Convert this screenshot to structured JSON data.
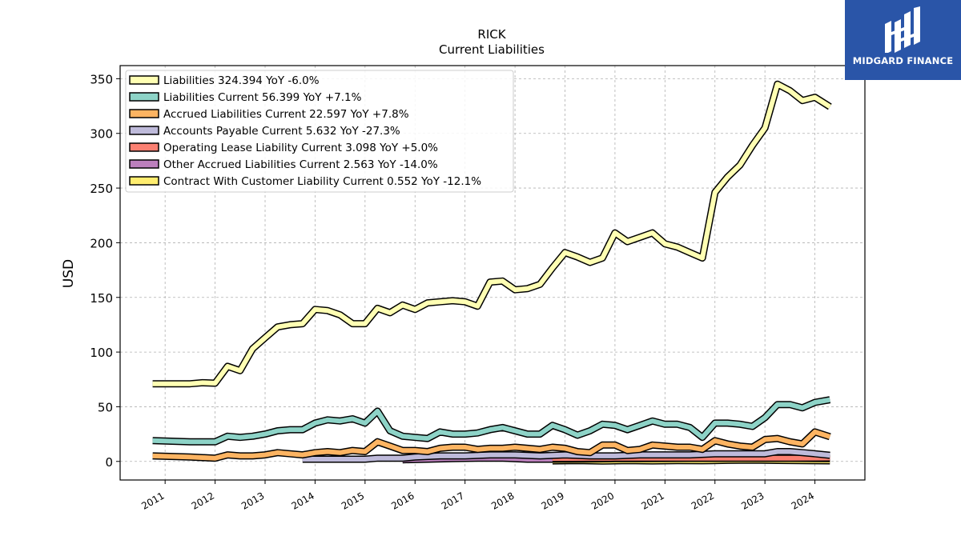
{
  "logo": {
    "name": "MIDGARD FINANCE",
    "icon": "midgard-finance-logo-icon",
    "bg_color": "#2a55a8"
  },
  "chart_data": {
    "type": "line",
    "title": "RICK",
    "subtitle": "Current  Liabilities",
    "ylabel": "USD",
    "xlabel": "",
    "ylim": [
      -17,
      362
    ],
    "xlim": [
      2010.1,
      2025.0
    ],
    "yticks": [
      0,
      50,
      100,
      150,
      200,
      250,
      300,
      350
    ],
    "xticks": [
      "2011",
      "2012",
      "2013",
      "2014",
      "2015",
      "2016",
      "2017",
      "2018",
      "2019",
      "2020",
      "2021",
      "2022",
      "2023",
      "2024"
    ],
    "grid": true,
    "legend_position": "top-left",
    "series": [
      {
        "name": "Liabilities",
        "legend": "Liabilities  324.394 YoY -6.0%",
        "color": "#ffffb3",
        "points": [
          [
            2010.75,
            71
          ],
          [
            2011.5,
            71
          ],
          [
            2011.75,
            72
          ],
          [
            2012.0,
            71.5
          ],
          [
            2012.25,
            87
          ],
          [
            2012.5,
            83
          ],
          [
            2012.75,
            103
          ],
          [
            2013.0,
            113
          ],
          [
            2013.25,
            123
          ],
          [
            2013.5,
            125
          ],
          [
            2013.75,
            126
          ],
          [
            2014.0,
            139
          ],
          [
            2014.25,
            138
          ],
          [
            2014.5,
            134
          ],
          [
            2014.75,
            126
          ],
          [
            2015.0,
            126
          ],
          [
            2015.25,
            140
          ],
          [
            2015.5,
            136
          ],
          [
            2015.75,
            143
          ],
          [
            2016.0,
            139
          ],
          [
            2016.25,
            145
          ],
          [
            2016.5,
            146
          ],
          [
            2016.75,
            147
          ],
          [
            2017.0,
            146
          ],
          [
            2017.25,
            142
          ],
          [
            2017.5,
            164
          ],
          [
            2017.75,
            165
          ],
          [
            2018.0,
            157
          ],
          [
            2018.25,
            158
          ],
          [
            2018.5,
            162
          ],
          [
            2018.75,
            177
          ],
          [
            2019.0,
            191
          ],
          [
            2019.25,
            187
          ],
          [
            2019.5,
            182
          ],
          [
            2019.75,
            186
          ],
          [
            2020.0,
            209
          ],
          [
            2020.25,
            201
          ],
          [
            2020.5,
            205
          ],
          [
            2020.75,
            209
          ],
          [
            2021.0,
            199
          ],
          [
            2021.25,
            196
          ],
          [
            2021.5,
            191
          ],
          [
            2021.75,
            186
          ],
          [
            2022.0,
            246
          ],
          [
            2022.25,
            260
          ],
          [
            2022.5,
            271
          ],
          [
            2022.75,
            289
          ],
          [
            2023.0,
            305
          ],
          [
            2023.25,
            345
          ],
          [
            2023.5,
            339
          ],
          [
            2023.75,
            330
          ],
          [
            2024.0,
            333
          ],
          [
            2024.3,
            324.394
          ]
        ]
      },
      {
        "name": "Liabilities Current",
        "legend": "Liabilities Current  56.399 YoY +7.1%",
        "color": "#8dd3c7",
        "points": [
          [
            2010.75,
            19
          ],
          [
            2011.5,
            18
          ],
          [
            2012.0,
            18
          ],
          [
            2012.25,
            23
          ],
          [
            2012.5,
            22
          ],
          [
            2012.75,
            23
          ],
          [
            2013.0,
            25
          ],
          [
            2013.25,
            28
          ],
          [
            2013.5,
            29
          ],
          [
            2013.75,
            29
          ],
          [
            2014.0,
            35
          ],
          [
            2014.25,
            38
          ],
          [
            2014.5,
            37
          ],
          [
            2014.75,
            39
          ],
          [
            2015.0,
            35
          ],
          [
            2015.25,
            46
          ],
          [
            2015.5,
            28
          ],
          [
            2015.75,
            23
          ],
          [
            2016.0,
            22
          ],
          [
            2016.25,
            21
          ],
          [
            2016.5,
            27
          ],
          [
            2016.75,
            25
          ],
          [
            2017.0,
            25
          ],
          [
            2017.25,
            26
          ],
          [
            2017.5,
            29
          ],
          [
            2017.75,
            31
          ],
          [
            2018.0,
            28
          ],
          [
            2018.25,
            25
          ],
          [
            2018.5,
            25
          ],
          [
            2018.75,
            33
          ],
          [
            2019.0,
            29
          ],
          [
            2019.25,
            24
          ],
          [
            2019.5,
            28
          ],
          [
            2019.75,
            34
          ],
          [
            2020.0,
            33
          ],
          [
            2020.25,
            29
          ],
          [
            2020.5,
            33
          ],
          [
            2020.75,
            37
          ],
          [
            2021.0,
            34
          ],
          [
            2021.25,
            34
          ],
          [
            2021.5,
            31
          ],
          [
            2021.75,
            22
          ],
          [
            2022.0,
            35
          ],
          [
            2022.25,
            35
          ],
          [
            2022.5,
            34
          ],
          [
            2022.75,
            32
          ],
          [
            2023.0,
            40
          ],
          [
            2023.25,
            52
          ],
          [
            2023.5,
            52
          ],
          [
            2023.75,
            49
          ],
          [
            2024.0,
            54
          ],
          [
            2024.3,
            56.399
          ]
        ]
      },
      {
        "name": "Accrued Liabilities Current",
        "legend": "Accrued Liabilities Current  22.597 YoY +7.8%",
        "color": "#fdb462",
        "points": [
          [
            2010.75,
            5
          ],
          [
            2011.5,
            4
          ],
          [
            2012.0,
            3
          ],
          [
            2012.25,
            6
          ],
          [
            2012.5,
            5
          ],
          [
            2012.75,
            5
          ],
          [
            2013.0,
            6
          ],
          [
            2013.25,
            8
          ],
          [
            2013.5,
            7
          ],
          [
            2013.75,
            6
          ],
          [
            2014.0,
            8
          ],
          [
            2014.25,
            9
          ],
          [
            2014.5,
            8
          ],
          [
            2014.75,
            10
          ],
          [
            2015.0,
            9
          ],
          [
            2015.25,
            18
          ],
          [
            2015.5,
            14
          ],
          [
            2015.75,
            10
          ],
          [
            2016.0,
            10
          ],
          [
            2016.25,
            9
          ],
          [
            2016.5,
            12
          ],
          [
            2016.75,
            13
          ],
          [
            2017.0,
            13
          ],
          [
            2017.25,
            11
          ],
          [
            2017.5,
            12
          ],
          [
            2017.75,
            12
          ],
          [
            2018.0,
            13
          ],
          [
            2018.25,
            12
          ],
          [
            2018.5,
            11
          ],
          [
            2018.75,
            13
          ],
          [
            2019.0,
            12
          ],
          [
            2019.25,
            9
          ],
          [
            2019.5,
            8
          ],
          [
            2019.75,
            15
          ],
          [
            2020.0,
            15
          ],
          [
            2020.25,
            10
          ],
          [
            2020.5,
            11
          ],
          [
            2020.75,
            15
          ],
          [
            2021.0,
            14
          ],
          [
            2021.25,
            13
          ],
          [
            2021.5,
            13
          ],
          [
            2021.75,
            11
          ],
          [
            2022.0,
            19
          ],
          [
            2022.25,
            16
          ],
          [
            2022.5,
            14
          ],
          [
            2022.75,
            13
          ],
          [
            2023.0,
            20
          ],
          [
            2023.25,
            21
          ],
          [
            2023.5,
            18
          ],
          [
            2023.75,
            16
          ],
          [
            2024.0,
            27
          ],
          [
            2024.3,
            22.597
          ]
        ]
      },
      {
        "name": "Accounts Payable Current",
        "legend": "Accounts Payable Current  5.632 YoY -27.3%",
        "color": "#bebada",
        "points": [
          [
            2013.75,
            2
          ],
          [
            2014.0,
            2
          ],
          [
            2014.25,
            2
          ],
          [
            2014.5,
            2
          ],
          [
            2014.75,
            2
          ],
          [
            2015.0,
            2
          ],
          [
            2015.25,
            3
          ],
          [
            2015.5,
            3
          ],
          [
            2015.75,
            3
          ],
          [
            2016.0,
            4
          ],
          [
            2016.5,
            5
          ],
          [
            2017.0,
            5
          ],
          [
            2017.5,
            6
          ],
          [
            2018.0,
            6
          ],
          [
            2018.5,
            5
          ],
          [
            2019.0,
            6
          ],
          [
            2019.5,
            5
          ],
          [
            2020.0,
            5
          ],
          [
            2020.5,
            6
          ],
          [
            2021.0,
            6
          ],
          [
            2021.5,
            6
          ],
          [
            2022.0,
            7
          ],
          [
            2022.5,
            7
          ],
          [
            2023.0,
            7
          ],
          [
            2023.25,
            9
          ],
          [
            2023.5,
            9
          ],
          [
            2023.75,
            8
          ],
          [
            2024.0,
            7
          ],
          [
            2024.3,
            5.632
          ]
        ]
      },
      {
        "name": "Operating Lease Liability Current",
        "legend": "Operating Lease Liability Current  3.098 YoY +5.0%",
        "color": "#fb8072",
        "points": [
          [
            2018.75,
            2.7
          ],
          [
            2019.5,
            2.8
          ],
          [
            2020.0,
            2.9
          ],
          [
            2020.5,
            2.9
          ],
          [
            2021.0,
            3.0
          ],
          [
            2021.5,
            3.0
          ],
          [
            2022.0,
            2.9
          ],
          [
            2022.5,
            3.0
          ],
          [
            2023.0,
            3.0
          ],
          [
            2023.5,
            3.0
          ],
          [
            2024.0,
            3.05
          ],
          [
            2024.3,
            3.098
          ]
        ]
      },
      {
        "name": "Other Accrued Liabilities Current",
        "legend": "Other Accrued Liabilities Current  2.563 YoY -14.0%",
        "color": "#bc80bd",
        "points": [
          [
            2015.75,
            1.5
          ],
          [
            2016.25,
            2.0
          ],
          [
            2016.75,
            2.5
          ],
          [
            2017.25,
            3.0
          ],
          [
            2017.75,
            3.0
          ],
          [
            2018.25,
            2.0
          ],
          [
            2018.75,
            2.0
          ],
          [
            2019.5,
            2.2
          ],
          [
            2020.0,
            2.5
          ],
          [
            2020.5,
            2.6
          ],
          [
            2021.0,
            2.7
          ],
          [
            2021.5,
            2.8
          ],
          [
            2022.0,
            2.8
          ],
          [
            2022.5,
            2.9
          ],
          [
            2023.0,
            2.8
          ],
          [
            2023.5,
            2.9
          ],
          [
            2024.0,
            2.7
          ],
          [
            2024.3,
            2.563
          ]
        ]
      },
      {
        "name": "Contract With Customer Liability Current",
        "legend": "Contract With Customer Liability Current  0.552 YoY -12.1%",
        "color": "#ffed6f",
        "points": [
          [
            2018.75,
            0.5
          ],
          [
            2019.25,
            0.8
          ],
          [
            2019.75,
            0.4
          ],
          [
            2020.25,
            0.7
          ],
          [
            2020.75,
            0.5
          ],
          [
            2021.25,
            0.8
          ],
          [
            2021.75,
            0.6
          ],
          [
            2022.25,
            1.0
          ],
          [
            2022.75,
            1.2
          ],
          [
            2023.25,
            0.9
          ],
          [
            2023.75,
            0.7
          ],
          [
            2024.0,
            0.6
          ],
          [
            2024.3,
            0.552
          ]
        ]
      }
    ]
  }
}
